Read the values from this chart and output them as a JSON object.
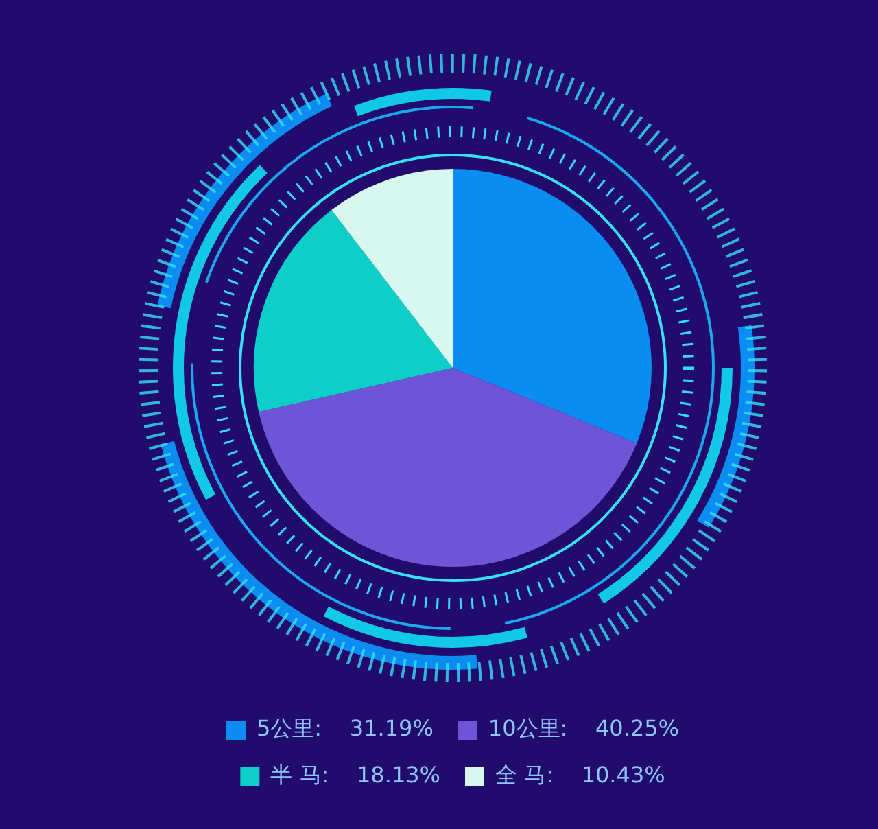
{
  "chart_data": {
    "type": "pie",
    "categories": [
      "5公里",
      "10公里",
      "半 马",
      "全 马"
    ],
    "values": [
      31.19,
      40.25,
      18.13,
      10.43
    ],
    "value_labels": [
      "31.19%",
      "40.25%",
      "18.13%",
      "10.43%"
    ],
    "colors": [
      "#0a8cf0",
      "#6e55d8",
      "#0ecfc8",
      "#d8f7ee"
    ],
    "legend": "bottom"
  }
}
